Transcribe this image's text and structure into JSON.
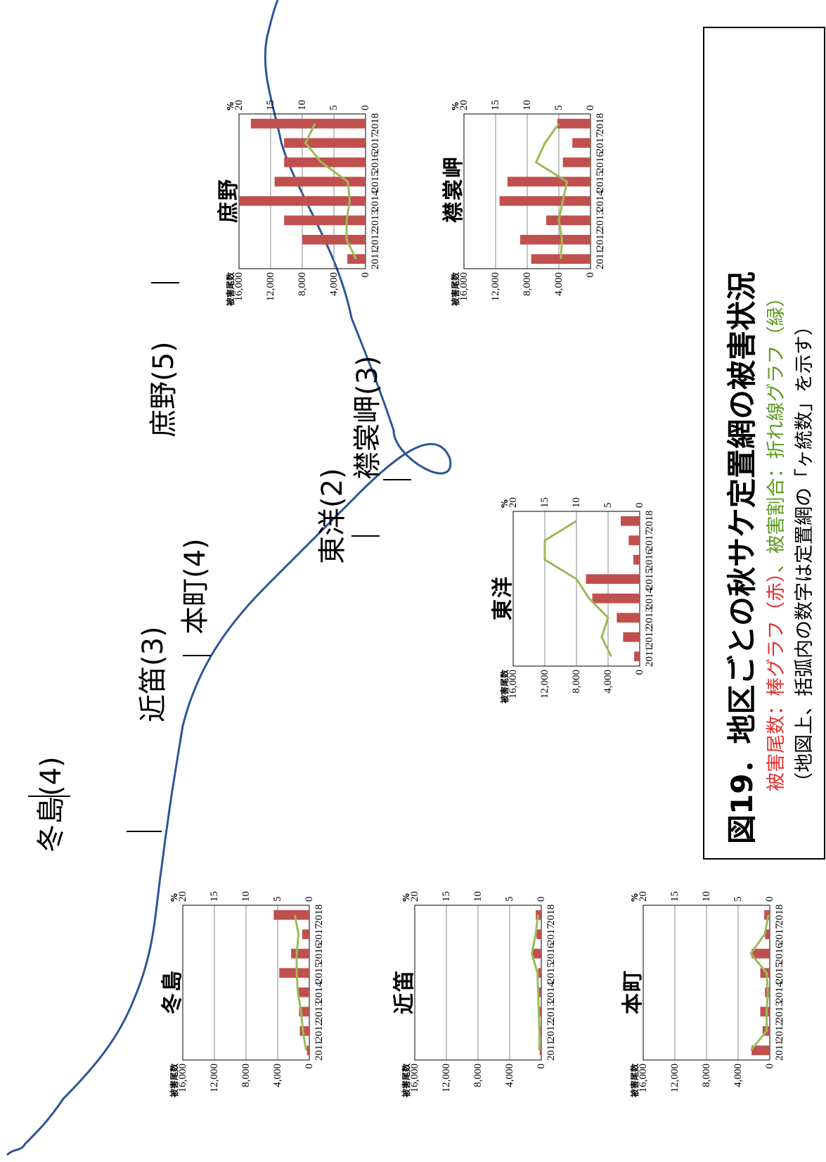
{
  "map": {
    "labels": [
      {
        "id": "fuyushima",
        "text": "冬島(4)"
      },
      {
        "id": "chikabue",
        "text": "近笛(3)"
      },
      {
        "id": "honcho",
        "text": "本町(4)"
      },
      {
        "id": "toyo",
        "text": "東洋(2)"
      },
      {
        "id": "shoya",
        "text": "庶野(5)"
      },
      {
        "id": "erimomisaki",
        "text": "襟裳岬(3)"
      }
    ]
  },
  "caption": {
    "title": "図19．地区ごとの秋サケ定置網の被害状況",
    "legend_prefix": "被害尾数：",
    "legend_bar": "棒グラフ（赤）",
    "legend_sep": "、被害割合：",
    "legend_line": "折れ線グラフ（緑）",
    "note": "（地図上、括弧内の数字は定置網の「ヶ統数」を示す）"
  },
  "colors": {
    "bar": "#c0504d",
    "line": "#9bbb59",
    "grid": "#888888",
    "coast": "#2f5597"
  },
  "chart_data": [
    {
      "id": "fuyushima",
      "type": "bar",
      "title": "冬島",
      "categories": [
        "2011",
        "2012",
        "2013",
        "2014",
        "2015",
        "2016",
        "2017",
        "2018"
      ],
      "ylabel": "被害尾数",
      "y2label": "%",
      "ylim": [
        0,
        16000
      ],
      "yticks": [
        "0",
        "4,000",
        "8,000",
        "12,000",
        "16,000"
      ],
      "y2lim": [
        0,
        20
      ],
      "y2ticks": [
        "0",
        "5",
        "10",
        "15",
        "20"
      ],
      "series": [
        {
          "kind": "bar",
          "values": [
            300,
            1200,
            1300,
            1500,
            3800,
            2300,
            900,
            4500
          ]
        },
        {
          "kind": "line",
          "values": [
            0.5,
            1,
            1.3,
            1.8,
            2,
            2,
            1.7,
            2.3
          ]
        }
      ]
    },
    {
      "id": "chikabue",
      "type": "bar",
      "title": "近笛",
      "categories": [
        "2011",
        "2012",
        "2013",
        "2014",
        "2015",
        "2016",
        "2017",
        "2018"
      ],
      "ylabel": "被害尾数",
      "y2label": "%",
      "ylim": [
        0,
        16000
      ],
      "yticks": [
        "0",
        "4,000",
        "8,000",
        "12,000",
        "16,000"
      ],
      "y2lim": [
        0,
        20
      ],
      "y2ticks": [
        "0",
        "5",
        "10",
        "15",
        "20"
      ],
      "series": [
        {
          "kind": "bar",
          "values": [
            200,
            200,
            300,
            400,
            400,
            1200,
            600,
            700
          ]
        },
        {
          "kind": "line",
          "values": [
            0.3,
            0.3,
            0.4,
            0.5,
            0.6,
            1.5,
            0.9,
            0.5
          ]
        }
      ]
    },
    {
      "id": "honcho",
      "type": "bar",
      "title": "本町",
      "categories": [
        "2011",
        "2012",
        "2013",
        "2014",
        "2015",
        "2016",
        "2017",
        "2018"
      ],
      "ylabel": "被害尾数",
      "y2label": "%",
      "ylim": [
        0,
        16000
      ],
      "yticks": [
        "0",
        "4,000",
        "8,000",
        "12,000",
        "16,000"
      ],
      "y2lim": [
        0,
        20
      ],
      "y2ticks": [
        "0",
        "5",
        "10",
        "15",
        "20"
      ],
      "series": [
        {
          "kind": "bar",
          "values": [
            2300,
            900,
            1200,
            600,
            1200,
            2300,
            600,
            700
          ]
        },
        {
          "kind": "line",
          "values": [
            3,
            0.5,
            0.5,
            0.3,
            0.5,
            3,
            0.8,
            0.2
          ]
        }
      ]
    },
    {
      "id": "toyo",
      "type": "bar",
      "title": "東洋",
      "categories": [
        "2011",
        "2012",
        "2013",
        "2014",
        "2015",
        "2016",
        "2017",
        "2018"
      ],
      "ylabel": "被害尾数",
      "y2label": "%",
      "ylim": [
        0,
        16000
      ],
      "yticks": [
        "0",
        "4,000",
        "8,000",
        "12,000",
        "16,000"
      ],
      "y2lim": [
        0,
        20
      ],
      "y2ticks": [
        "0",
        "5",
        "10",
        "15",
        "20"
      ],
      "series": [
        {
          "kind": "bar",
          "values": [
            700,
            2100,
            2900,
            6000,
            6800,
            800,
            1400,
            2400
          ]
        },
        {
          "kind": "line",
          "values": [
            4.5,
            6,
            5,
            8,
            10,
            15,
            15,
            10
          ]
        }
      ]
    },
    {
      "id": "shoya",
      "type": "bar",
      "title": "庶野",
      "categories": [
        "2011",
        "2012",
        "2013",
        "2014",
        "2015",
        "2016",
        "2017",
        "2018"
      ],
      "ylabel": "被害尾数",
      "y2label": "%",
      "ylim": [
        0,
        16000
      ],
      "yticks": [
        "0",
        "4,000",
        "8,000",
        "12,000",
        "16,000"
      ],
      "y2lim": [
        0,
        20
      ],
      "y2ticks": [
        "0",
        "5",
        "10",
        "15",
        "20"
      ],
      "series": [
        {
          "kind": "bar",
          "values": [
            2300,
            8000,
            10300,
            16000,
            11500,
            10300,
            10300,
            14500
          ]
        },
        {
          "kind": "line",
          "values": [
            1.5,
            3,
            3,
            2.5,
            2.8,
            7,
            9.5,
            8
          ]
        }
      ]
    },
    {
      "id": "erimomisaki",
      "type": "bar",
      "title": "襟裳岬",
      "categories": [
        "2011",
        "2012",
        "2013",
        "2014",
        "2015",
        "2016",
        "2017",
        "2018"
      ],
      "ylabel": "被害尾数",
      "y2label": "%",
      "ylim": [
        0,
        16000
      ],
      "yticks": [
        "0",
        "4,000",
        "8,000",
        "12,000",
        "16,000"
      ],
      "y2lim": [
        0,
        20
      ],
      "y2ticks": [
        "0",
        "5",
        "10",
        "15",
        "20"
      ],
      "series": [
        {
          "kind": "bar",
          "values": [
            7500,
            8900,
            5600,
            11500,
            10500,
            3500,
            2300,
            4200
          ]
        },
        {
          "kind": "line",
          "values": [
            4.7,
            4.5,
            5,
            4.4,
            3.7,
            8.6,
            7.2,
            5
          ]
        }
      ]
    }
  ]
}
